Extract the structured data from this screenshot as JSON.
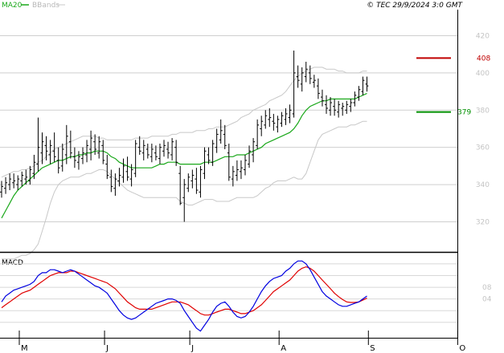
{
  "header": {
    "legend": [
      {
        "label": "MA20",
        "color": "#1aa81a"
      },
      {
        "label": "BBands",
        "color": "#c8c8c8"
      }
    ],
    "copyright": "© TEC 29/9/2024 3:0 GMT"
  },
  "chart_data": [
    {
      "type": "line",
      "name": "price",
      "y_ticks": [
        320,
        340,
        360,
        380,
        400,
        420
      ],
      "ylim": [
        309,
        434
      ],
      "months": [
        {
          "label": "M",
          "index": 0
        },
        {
          "label": "J",
          "index": 21
        },
        {
          "label": "J",
          "index": 42
        },
        {
          "label": "A",
          "index": 64
        },
        {
          "label": "S",
          "index": 86
        },
        {
          "label": "O",
          "index": 108
        }
      ],
      "ohlc": [
        [
          336,
          342,
          333,
          339
        ],
        [
          338,
          344,
          335,
          341
        ],
        [
          340,
          346,
          337,
          343
        ],
        [
          341,
          346,
          338,
          342
        ],
        [
          340,
          345,
          337,
          343
        ],
        [
          342,
          347,
          339,
          345
        ],
        [
          343,
          348,
          340,
          344
        ],
        [
          342,
          350,
          340,
          348
        ],
        [
          346,
          356,
          343,
          352
        ],
        [
          351,
          376,
          347,
          360
        ],
        [
          357,
          368,
          351,
          363
        ],
        [
          361,
          366,
          353,
          358
        ],
        [
          356,
          364,
          351,
          361
        ],
        [
          358,
          368,
          352,
          355
        ],
        [
          353,
          360,
          346,
          349
        ],
        [
          350,
          362,
          347,
          359
        ],
        [
          356,
          372,
          351,
          366
        ],
        [
          363,
          369,
          354,
          357
        ],
        [
          355,
          360,
          349,
          353
        ],
        [
          352,
          358,
          348,
          355
        ],
        [
          354,
          360,
          351,
          357
        ],
        [
          356,
          364,
          352,
          361
        ],
        [
          359,
          369,
          353,
          365
        ],
        [
          363,
          367,
          356,
          359
        ],
        [
          357,
          366,
          354,
          363
        ],
        [
          361,
          364,
          351,
          353
        ],
        [
          351,
          356,
          343,
          345
        ],
        [
          344,
          348,
          336,
          339
        ],
        [
          338,
          346,
          334,
          343
        ],
        [
          342,
          349,
          339,
          345
        ],
        [
          344,
          354,
          341,
          350
        ],
        [
          347,
          355,
          342,
          344
        ],
        [
          343,
          351,
          339,
          348
        ],
        [
          346,
          364,
          344,
          362
        ],
        [
          360,
          366,
          356,
          358
        ],
        [
          357,
          364,
          353,
          361
        ],
        [
          359,
          362,
          354,
          356
        ],
        [
          355,
          362,
          352,
          359
        ],
        [
          357,
          361,
          353,
          355
        ],
        [
          354,
          362,
          351,
          360
        ],
        [
          358,
          364,
          355,
          361
        ],
        [
          359,
          363,
          354,
          357
        ],
        [
          356,
          365,
          353,
          363
        ],
        [
          360,
          364,
          350,
          352
        ],
        [
          346,
          350,
          329,
          330
        ],
        [
          333,
          343,
          320,
          340
        ],
        [
          338,
          346,
          336,
          344
        ],
        [
          342,
          348,
          338,
          345
        ],
        [
          343,
          349,
          335,
          337
        ],
        [
          336,
          350,
          333,
          348
        ],
        [
          346,
          360,
          343,
          358
        ],
        [
          356,
          360,
          351,
          353
        ],
        [
          352,
          364,
          350,
          362
        ],
        [
          360,
          370,
          357,
          367
        ],
        [
          364,
          375,
          362,
          369
        ],
        [
          367,
          372,
          359,
          361
        ],
        [
          357,
          362,
          342,
          344
        ],
        [
          343,
          350,
          339,
          347
        ],
        [
          345,
          353,
          342,
          348
        ],
        [
          347,
          353,
          343,
          349
        ],
        [
          348,
          356,
          345,
          353
        ],
        [
          351,
          361,
          349,
          358
        ],
        [
          356,
          365,
          352,
          363
        ],
        [
          361,
          375,
          359,
          372
        ],
        [
          370,
          377,
          366,
          374
        ],
        [
          372,
          380,
          370,
          377
        ],
        [
          375,
          381,
          371,
          376
        ],
        [
          374,
          378,
          369,
          373
        ],
        [
          371,
          377,
          368,
          375
        ],
        [
          373,
          379,
          371,
          377
        ],
        [
          375,
          381,
          372,
          378
        ],
        [
          376,
          383,
          373,
          380
        ],
        [
          378,
          412,
          376,
          400
        ],
        [
          398,
          404,
          392,
          396
        ],
        [
          394,
          403,
          390,
          400
        ],
        [
          398,
          406,
          395,
          402
        ],
        [
          400,
          404,
          394,
          397
        ],
        [
          395,
          399,
          392,
          396
        ],
        [
          393,
          397,
          386,
          389
        ],
        [
          387,
          391,
          382,
          385
        ],
        [
          383,
          388,
          378,
          381
        ],
        [
          380,
          387,
          377,
          384
        ],
        [
          382,
          386,
          377,
          380
        ],
        [
          379,
          385,
          376,
          383
        ],
        [
          381,
          384,
          377,
          382
        ],
        [
          380,
          385,
          378,
          383
        ],
        [
          382,
          386,
          379,
          384
        ],
        [
          384,
          390,
          382,
          388
        ],
        [
          387,
          393,
          385,
          391
        ],
        [
          390,
          398,
          388,
          396
        ],
        [
          394,
          398,
          390,
          393
        ]
      ],
      "ma20": [
        322,
        326,
        330,
        334,
        337,
        339,
        341,
        343,
        345,
        347,
        349,
        350,
        351,
        352,
        353,
        353,
        354,
        355,
        355,
        356,
        356,
        357,
        357,
        358,
        358,
        358,
        357,
        355,
        354,
        352,
        351,
        350,
        349,
        349,
        349,
        349,
        349,
        349,
        350,
        351,
        351,
        352,
        352,
        352,
        351,
        351,
        351,
        351,
        351,
        351,
        352,
        352,
        352,
        353,
        354,
        355,
        355,
        355,
        356,
        356,
        356,
        357,
        358,
        359,
        360,
        362,
        363,
        364,
        365,
        366,
        367,
        368,
        370,
        373,
        377,
        380,
        382,
        383,
        384,
        385,
        385,
        386,
        386,
        386,
        386,
        386,
        386,
        386,
        387,
        388,
        389
      ],
      "bb_upper": [
        344,
        345,
        346,
        347,
        347,
        348,
        348,
        349,
        350,
        352,
        353,
        355,
        357,
        359,
        360,
        361,
        362,
        363,
        364,
        365,
        366,
        366,
        366,
        366,
        365,
        365,
        364,
        364,
        364,
        364,
        364,
        364,
        364,
        365,
        365,
        365,
        365,
        366,
        366,
        366,
        366,
        366,
        367,
        367,
        368,
        368,
        368,
        368,
        369,
        369,
        369,
        370,
        370,
        371,
        371,
        371,
        372,
        373,
        374,
        376,
        377,
        378,
        380,
        381,
        382,
        383,
        385,
        386,
        387,
        388,
        390,
        393,
        396,
        398,
        400,
        401,
        402,
        403,
        403,
        403,
        402,
        402,
        402,
        401,
        401,
        400,
        400,
        400,
        400,
        401,
        401
      ],
      "bb_lower": [
        300,
        300,
        300,
        300,
        301,
        302,
        302,
        303,
        305,
        308,
        315,
        322,
        330,
        336,
        340,
        342,
        343,
        344,
        344,
        344,
        345,
        346,
        346,
        347,
        348,
        348,
        347,
        345,
        343,
        341,
        339,
        337,
        336,
        335,
        334,
        333,
        333,
        333,
        333,
        333,
        333,
        333,
        333,
        333,
        331,
        330,
        329,
        329,
        330,
        331,
        332,
        332,
        332,
        331,
        331,
        331,
        331,
        332,
        333,
        333,
        333,
        333,
        333,
        334,
        336,
        338,
        339,
        341,
        342,
        342,
        342,
        343,
        344,
        343,
        343,
        346,
        352,
        358,
        364,
        367,
        368,
        369,
        370,
        371,
        371,
        371,
        372,
        372,
        373,
        374,
        374
      ]
    },
    {
      "type": "line",
      "name": "MACD",
      "y_ticks": [
        4,
        8
      ],
      "ylim": [
        -9,
        19
      ],
      "macd": [
        3,
        5,
        6,
        7,
        7.5,
        8,
        8.5,
        9,
        10,
        12,
        13,
        13,
        14,
        14,
        13.5,
        13,
        13.5,
        14,
        13.5,
        12.5,
        11.5,
        10.5,
        9.5,
        8.5,
        8,
        7,
        6,
        4,
        2,
        0,
        -1.5,
        -2.5,
        -3,
        -2.5,
        -1.5,
        -0.5,
        0.5,
        1.5,
        2.5,
        3,
        3.5,
        4,
        4,
        3.5,
        2.5,
        0,
        -2,
        -4,
        -6,
        -7,
        -5,
        -3,
        -0.5,
        1.5,
        2.5,
        3,
        1.5,
        -0.5,
        -2,
        -2.5,
        -2,
        -0.5,
        1.5,
        4,
        6.5,
        8.5,
        10,
        11,
        11.5,
        12,
        13.5,
        14.5,
        16,
        17,
        17,
        16,
        14,
        11.5,
        9,
        6.5,
        5,
        4,
        3,
        2,
        1.5,
        1.5,
        2,
        2.5,
        3,
        4,
        5
      ],
      "signal": [
        1,
        2,
        3,
        4,
        5,
        6,
        6.5,
        7,
        8,
        9,
        10,
        11,
        12,
        12.5,
        13,
        13,
        13,
        13.5,
        13.5,
        13,
        12.5,
        12,
        11.5,
        11,
        10.5,
        10,
        9.5,
        8.5,
        7.5,
        6,
        4.5,
        3,
        2,
        1,
        0.5,
        0.5,
        0.5,
        0.5,
        1,
        1.5,
        2,
        2.5,
        3,
        3,
        3,
        2.5,
        2,
        1,
        0,
        -1,
        -1.5,
        -1.5,
        -1,
        -0.5,
        0,
        0.5,
        0.5,
        0,
        -0.5,
        -1,
        -1,
        -0.5,
        0,
        1,
        2,
        3.5,
        5,
        6.5,
        7.5,
        8.5,
        9.5,
        10.5,
        12,
        13.5,
        14.5,
        15,
        14.5,
        13.5,
        12,
        10.5,
        9,
        7.5,
        6,
        4.8,
        3.8,
        3,
        2.8,
        2.8,
        3,
        3.6,
        4.3
      ]
    }
  ],
  "panels": {
    "price_flags": [
      {
        "value": 408,
        "label": "408",
        "color": "#c00000"
      },
      {
        "value": 379,
        "label": "379",
        "color": "#009000"
      }
    ],
    "macd_label": "MACD"
  }
}
